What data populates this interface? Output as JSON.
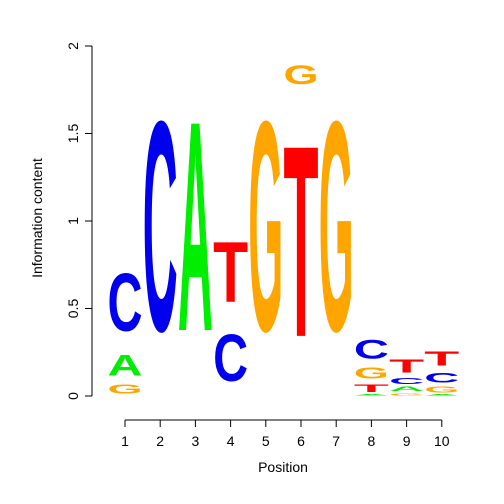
{
  "chart_data": {
    "type": "sequence-logo",
    "title": "",
    "xlabel": "Position",
    "ylabel": "Information content",
    "ylim": [
      0,
      2
    ],
    "y_ticks": [
      0,
      0.5,
      1,
      1.5,
      2
    ],
    "y_tick_labels": [
      "0",
      "0.5",
      "1",
      "1.5",
      "2"
    ],
    "x_ticks": [
      1,
      2,
      3,
      4,
      5,
      6,
      7,
      8,
      9,
      10
    ],
    "x_tick_labels": [
      "1",
      "2",
      "3",
      "4",
      "5",
      "6",
      "7",
      "8",
      "9",
      "10"
    ],
    "colors": {
      "A": "#00ee00",
      "C": "#0000ee",
      "G": "#ffa500",
      "T": "#ff0000"
    },
    "positions": [
      {
        "position": 1,
        "stack": [
          {
            "base": "G",
            "bits": 0.08
          },
          {
            "base": "A",
            "bits": 0.19
          },
          {
            "base": "C",
            "bits": 0.53
          }
        ]
      },
      {
        "position": 2,
        "stack": [
          {
            "base": "C",
            "bits": 1.92
          }
        ]
      },
      {
        "position": 3,
        "stack": [
          {
            "base": "A",
            "bits": 1.92
          }
        ]
      },
      {
        "position": 4,
        "stack": [
          {
            "base": "C",
            "bits": 0.43
          },
          {
            "base": "T",
            "bits": 0.55
          }
        ]
      },
      {
        "position": 5,
        "stack": [
          {
            "base": "G",
            "bits": 1.92
          }
        ]
      },
      {
        "position": 6,
        "stack": [
          {
            "base": "T",
            "bits": 1.75
          },
          {
            "base": "G",
            "bits": 0.17
          }
        ]
      },
      {
        "position": 7,
        "stack": [
          {
            "base": "G",
            "bits": 1.92
          }
        ]
      },
      {
        "position": 8,
        "stack": [
          {
            "base": "A",
            "bits": 0.01
          },
          {
            "base": "T",
            "bits": 0.07
          },
          {
            "base": "G",
            "bits": 0.1
          },
          {
            "base": "C",
            "bits": 0.17
          }
        ]
      },
      {
        "position": 9,
        "stack": [
          {
            "base": "G",
            "bits": 0.02
          },
          {
            "base": "A",
            "bits": 0.04
          },
          {
            "base": "C",
            "bits": 0.05
          },
          {
            "base": "T",
            "bits": 0.12
          }
        ]
      },
      {
        "position": 10,
        "stack": [
          {
            "base": "A",
            "bits": 0.01
          },
          {
            "base": "G",
            "bits": 0.05
          },
          {
            "base": "C",
            "bits": 0.09
          },
          {
            "base": "T",
            "bits": 0.13
          }
        ]
      }
    ]
  }
}
